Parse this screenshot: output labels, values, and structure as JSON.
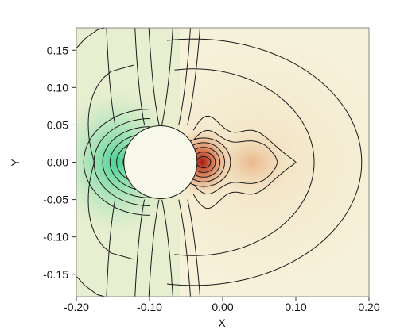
{
  "chart_data": {
    "type": "heatmap",
    "title": "",
    "xlabel": "X",
    "ylabel": "Y",
    "xlim": [
      -0.2,
      0.2
    ],
    "ylim": [
      -0.18,
      0.18
    ],
    "x_ticks": [
      -0.2,
      -0.1,
      0.0,
      0.1,
      0.2
    ],
    "x_tick_labels": [
      "-0.20",
      "-0.10",
      "0.00",
      "0.10",
      "0.20"
    ],
    "y_ticks": [
      -0.15,
      -0.1,
      -0.05,
      0.0,
      0.05,
      0.1,
      0.15
    ],
    "y_tick_labels": [
      "-0.15",
      "-0.10",
      "-0.05",
      "0.00",
      "0.05",
      "0.10",
      "0.15"
    ],
    "obstacle": {
      "shape": "circle",
      "center": [
        -0.085,
        0.0
      ],
      "radius": 0.05
    },
    "field": {
      "description_units": "normalized field value (-1 = strong green, +1 = strong red)",
      "negative_sources": [
        {
          "x": -0.135,
          "y": 0.0,
          "amplitude": -0.9
        }
      ],
      "positive_sources": [
        {
          "x": -0.028,
          "y": 0.0,
          "amplitude": 1.0
        },
        {
          "x": 0.04,
          "y": 0.0,
          "amplitude": 0.35
        }
      ]
    },
    "colors": {
      "negative": "#3fcf8e",
      "neutral": "#f6f1d9",
      "positive": "#a31a10",
      "obstacle": "#f8f8ea",
      "contour": "#1a1a1a"
    },
    "grid": false,
    "legend": "none"
  }
}
